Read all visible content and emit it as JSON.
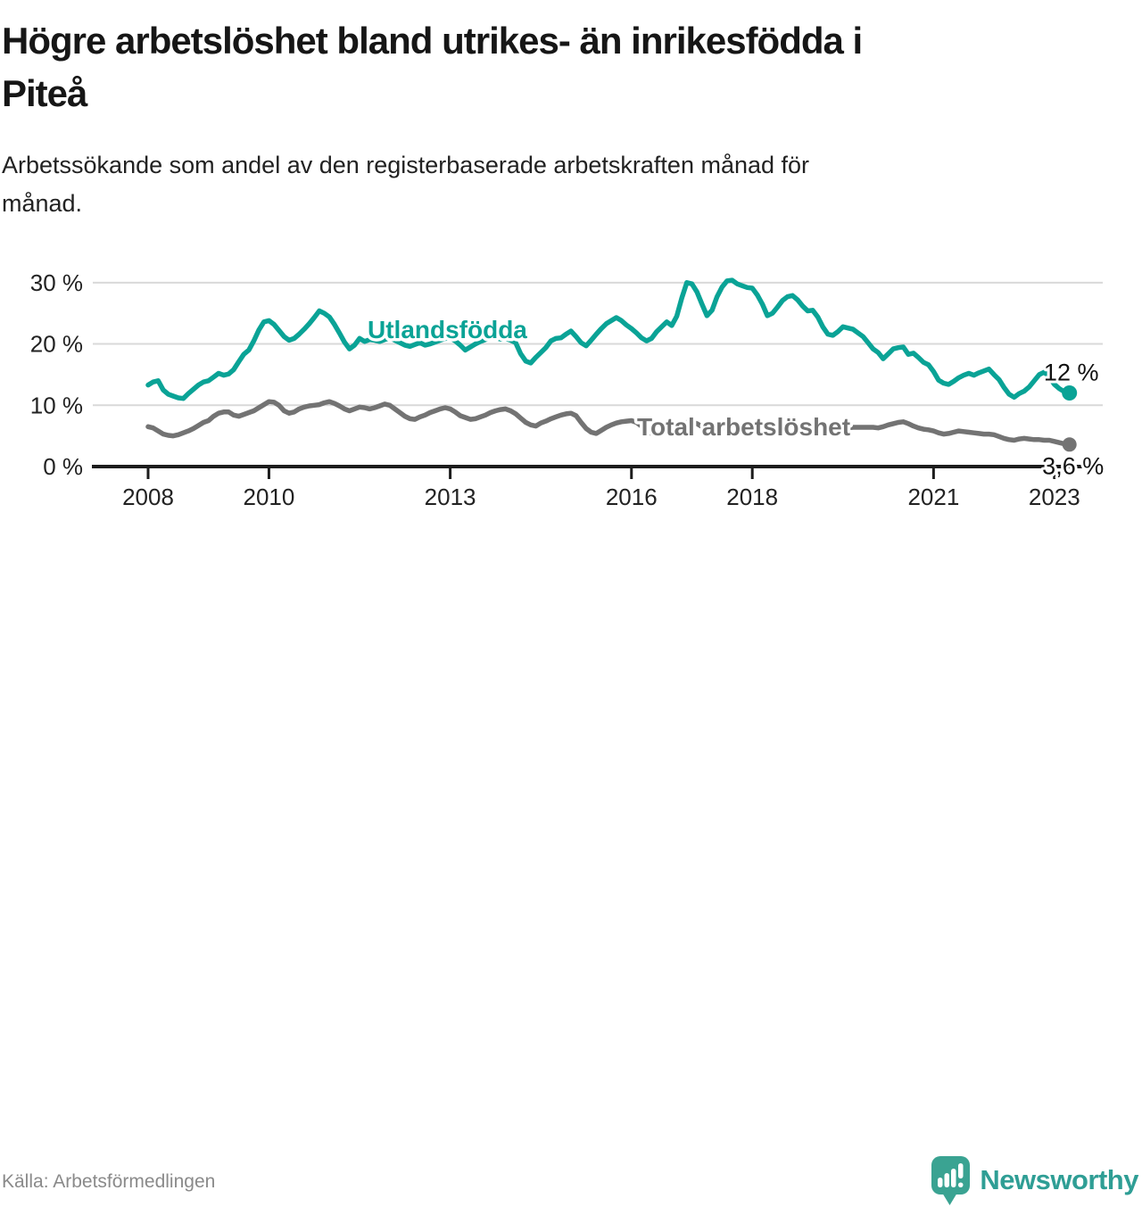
{
  "page": {
    "title_lines": [
      "Högre arbetslöshet bland utrikes- än inrikesfödda i",
      "Piteå"
    ],
    "subtitle_lines": [
      "Arbetssökande som andel av den registerbaserade arbetskraften månad för",
      "månad."
    ],
    "source": "Källa: Arbetsförmedlingen",
    "brand": "Newsworthy"
  },
  "colors": {
    "series_utlandsfodda": "#0aa396",
    "series_total": "#737373",
    "brand_teal": "#3aa392",
    "axis": "#1c1c1c",
    "grid": "#d9d9d9",
    "tick_text": "#222222",
    "value_label_text": "#111111",
    "muted_text": "#8a8a8a"
  },
  "chart_data": {
    "type": "line",
    "title": "Högre arbetslöshet bland utrikes- än inrikesfödda i Piteå",
    "subtitle": "Arbetssökande som andel av den registerbaserade arbetskraften månad för månad.",
    "unit": "%",
    "grid": true,
    "legend_position": "inline-labels",
    "x_start": "2008-01",
    "x_end": "2023-04",
    "points_per_year": 12,
    "x_axis": {
      "ticks": [
        {
          "year": 2008,
          "label": "2008"
        },
        {
          "year": 2010,
          "label": "2010"
        },
        {
          "year": 2013,
          "label": "2013"
        },
        {
          "year": 2016,
          "label": "2016"
        },
        {
          "year": 2018,
          "label": "2018"
        },
        {
          "year": 2021,
          "label": "2021"
        },
        {
          "year": 2023,
          "label": "2023"
        }
      ]
    },
    "y_axis": {
      "min": 0,
      "max": 30,
      "ticks": [
        {
          "value": 0,
          "label": "0 %"
        },
        {
          "value": 10,
          "label": "10 %"
        },
        {
          "value": 20,
          "label": "20 %"
        },
        {
          "value": 30,
          "label": "30 %"
        }
      ]
    },
    "series": [
      {
        "name": "Utlandsfödda",
        "color": "#0aa396",
        "end_label": "12 %",
        "values": [
          13.3,
          13.8,
          14.0,
          12.5,
          11.8,
          11.5,
          11.2,
          11.1,
          11.9,
          12.6,
          13.3,
          13.8,
          14.0,
          14.6,
          15.2,
          14.9,
          15.1,
          15.8,
          17.1,
          18.3,
          19.0,
          20.5,
          22.3,
          23.6,
          23.8,
          23.2,
          22.2,
          21.2,
          20.6,
          20.9,
          21.6,
          22.4,
          23.3,
          24.3,
          25.4,
          25.0,
          24.4,
          23.2,
          21.8,
          20.3,
          19.2,
          19.8,
          20.9,
          20.4,
          20.7,
          20.6,
          20.4,
          20.7,
          21.0,
          20.6,
          20.2,
          19.8,
          19.6,
          19.9,
          20.2,
          19.8,
          20.0,
          20.3,
          20.6,
          20.9,
          21.0,
          20.5,
          19.8,
          19.0,
          19.5,
          20.0,
          20.4,
          20.7,
          21.0,
          21.0,
          20.8,
          20.9,
          20.6,
          20.2,
          18.4,
          17.2,
          16.9,
          17.8,
          18.6,
          19.4,
          20.5,
          20.9,
          21.0,
          21.6,
          22.1,
          21.2,
          20.2,
          19.7,
          20.6,
          21.6,
          22.5,
          23.3,
          23.8,
          24.3,
          23.8,
          23.1,
          22.5,
          21.8,
          21.0,
          20.5,
          20.9,
          22.0,
          22.8,
          23.6,
          23.0,
          24.5,
          27.5,
          30.0,
          29.8,
          28.5,
          26.5,
          24.6,
          25.5,
          27.7,
          29.3,
          30.3,
          30.4,
          29.8,
          29.5,
          29.2,
          29.1,
          28.0,
          26.5,
          24.6,
          25.0,
          26.0,
          27.1,
          27.7,
          27.9,
          27.2,
          26.2,
          25.4,
          25.5,
          24.4,
          22.8,
          21.6,
          21.4,
          22.0,
          22.8,
          22.6,
          22.4,
          21.8,
          21.2,
          20.2,
          19.2,
          18.6,
          17.6,
          18.4,
          19.2,
          19.4,
          19.5,
          18.3,
          18.5,
          17.8,
          17.0,
          16.6,
          15.5,
          14.1,
          13.6,
          13.4,
          13.9,
          14.5,
          14.9,
          15.2,
          14.9,
          15.3,
          15.6,
          15.9,
          15.0,
          14.2,
          12.9,
          11.8,
          11.3,
          11.9,
          12.3,
          13.0,
          14.0,
          15.0,
          15.4,
          14.6,
          13.4,
          12.7,
          12.2,
          12.0
        ]
      },
      {
        "name": "Total arbetslöshet",
        "color": "#737373",
        "end_label": "3,6 %",
        "values": [
          6.5,
          6.3,
          5.8,
          5.3,
          5.1,
          5.0,
          5.2,
          5.5,
          5.8,
          6.2,
          6.7,
          7.2,
          7.5,
          8.2,
          8.7,
          8.9,
          8.9,
          8.4,
          8.2,
          8.5,
          8.8,
          9.1,
          9.6,
          10.1,
          10.6,
          10.5,
          10.0,
          9.1,
          8.7,
          8.9,
          9.4,
          9.7,
          9.9,
          10.0,
          10.1,
          10.4,
          10.6,
          10.3,
          9.9,
          9.4,
          9.1,
          9.4,
          9.7,
          9.6,
          9.4,
          9.6,
          9.9,
          10.2,
          10.0,
          9.4,
          8.8,
          8.2,
          7.8,
          7.7,
          8.1,
          8.4,
          8.8,
          9.1,
          9.4,
          9.6,
          9.4,
          8.9,
          8.3,
          8.0,
          7.7,
          7.8,
          8.1,
          8.4,
          8.8,
          9.1,
          9.3,
          9.4,
          9.1,
          8.6,
          7.9,
          7.2,
          6.8,
          6.6,
          7.1,
          7.4,
          7.8,
          8.1,
          8.4,
          8.6,
          8.7,
          8.3,
          7.2,
          6.2,
          5.6,
          5.4,
          5.9,
          6.4,
          6.8,
          7.1,
          7.3,
          7.4,
          7.5,
          7.2,
          6.6,
          5.9,
          5.4,
          5.3,
          5.8,
          6.2,
          6.5,
          6.8,
          7.0,
          7.2,
          7.3,
          7.0,
          6.5,
          5.9,
          5.6,
          5.8,
          6.2,
          6.5,
          6.7,
          6.8,
          6.9,
          7.0,
          7.0,
          6.8,
          6.3,
          5.8,
          5.5,
          5.7,
          6.0,
          6.2,
          6.4,
          6.5,
          6.6,
          6.7,
          6.8,
          6.6,
          6.2,
          5.8,
          5.6,
          5.8,
          6.1,
          6.3,
          6.4,
          6.4,
          6.4,
          6.4,
          6.4,
          6.3,
          6.5,
          6.8,
          7.0,
          7.2,
          7.3,
          7.0,
          6.6,
          6.3,
          6.1,
          6.0,
          5.8,
          5.5,
          5.3,
          5.4,
          5.6,
          5.8,
          5.7,
          5.6,
          5.5,
          5.4,
          5.3,
          5.3,
          5.2,
          4.9,
          4.6,
          4.4,
          4.3,
          4.5,
          4.6,
          4.5,
          4.4,
          4.4,
          4.3,
          4.3,
          4.1,
          3.9,
          3.7,
          3.6
        ]
      }
    ]
  }
}
